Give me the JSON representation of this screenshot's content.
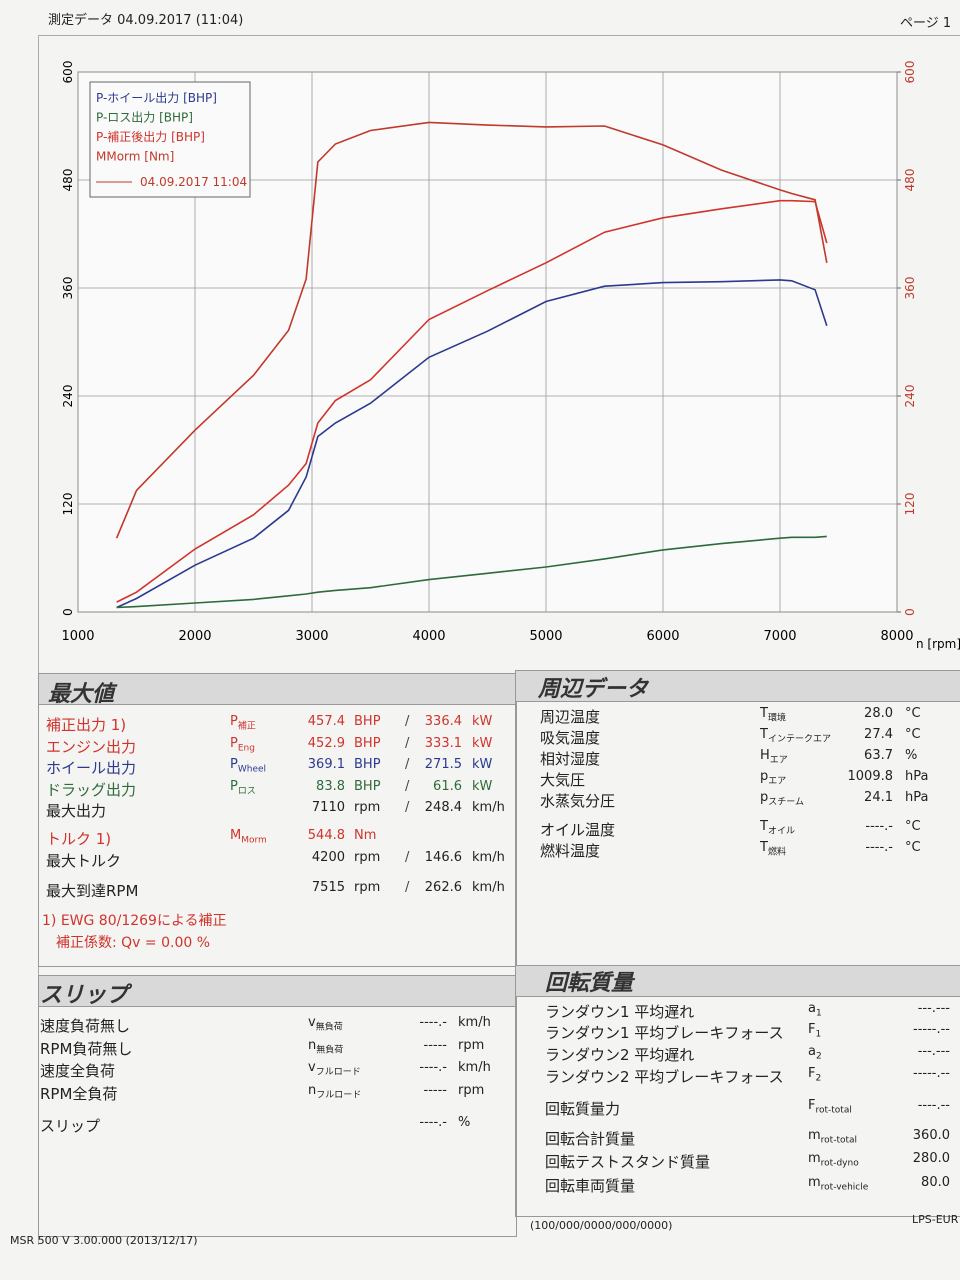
{
  "header": {
    "title": "測定データ 04.09.2017 (11:04)",
    "page": "ページ 1"
  },
  "chart_data": {
    "type": "line",
    "x_label": "n [rpm]",
    "x": [
      1330,
      1500,
      2000,
      2500,
      2800,
      2950,
      3050,
      3200,
      3500,
      4000,
      4500,
      5000,
      5500,
      6000,
      6500,
      7000,
      7100,
      7300,
      7400
    ],
    "xlim": [
      1000,
      8000
    ],
    "xticks": [
      1000,
      2000,
      3000,
      4000,
      5000,
      6000,
      7000,
      8000
    ],
    "ylim": [
      0,
      600
    ],
    "yticks": [
      0,
      120,
      240,
      360,
      480,
      600
    ],
    "y2lim": [
      0,
      600
    ],
    "y2ticks": [
      0,
      120,
      240,
      360,
      480,
      600
    ],
    "grid": true,
    "legend": {
      "position": "upper left",
      "run_label": "04.09.2017 11:04",
      "run_color": "#c0392b"
    },
    "series": [
      {
        "name": "P-ホイール出力 [BHP]",
        "color": "#2b3a8f",
        "values": [
          5,
          15,
          52,
          82,
          113,
          150,
          195,
          210,
          232,
          283,
          312,
          345,
          362,
          366,
          367,
          369,
          368,
          358,
          318
        ]
      },
      {
        "name": "P-ロス出力 [BHP]",
        "color": "#2e6b3a",
        "values": [
          5,
          6,
          10,
          14,
          18,
          20,
          22,
          24,
          27,
          36,
          43,
          50,
          59,
          69,
          76,
          82,
          83,
          83,
          84
        ]
      },
      {
        "name": "P-補正後出力 [BHP]",
        "color": "#d0342c",
        "values": [
          11,
          22,
          70,
          108,
          141,
          165,
          210,
          235,
          258,
          325,
          357,
          388,
          422,
          438,
          448,
          457,
          457,
          456,
          410
        ]
      },
      {
        "name": "MMorm [Nm]",
        "color": "#c0392b",
        "axis": "y2",
        "values": [
          82,
          135,
          202,
          263,
          313,
          370,
          500,
          520,
          535,
          544,
          541,
          539,
          540,
          519,
          491,
          469,
          465,
          458,
          388
        ]
      }
    ]
  },
  "max_values": {
    "title": "最大値",
    "separator": "/",
    "rows": [
      {
        "label": "補正出力 1)",
        "symbol": "P",
        "sub": "補正",
        "value": "457.4",
        "unit": "BHP",
        "value2": "336.4",
        "unit2": "kW",
        "color": "#d0342c"
      },
      {
        "label": "エンジン出力",
        "symbol": "P",
        "sub": "Eng",
        "value": "452.9",
        "unit": "BHP",
        "value2": "333.1",
        "unit2": "kW",
        "color": "#d0342c"
      },
      {
        "label": "ホイール出力",
        "symbol": "P",
        "sub": "Wheel",
        "value": "369.1",
        "unit": "BHP",
        "value2": "271.5",
        "unit2": "kW",
        "color": "#2b3a8f"
      },
      {
        "label": "ドラッグ出力",
        "symbol": "P",
        "sub": "ロス",
        "value": "83.8",
        "unit": "BHP",
        "value2": "61.6",
        "unit2": "kW",
        "color": "#2e6b3a"
      },
      {
        "label": "最大出力",
        "value": "7110",
        "unit": "rpm",
        "value2": "248.4",
        "unit2": "km/h"
      },
      {
        "label": "トルク 1)",
        "symbol": "M",
        "sub": "Morm",
        "value": "544.8",
        "unit": "Nm",
        "color": "#d0342c"
      },
      {
        "label": "最大トルク",
        "value": "4200",
        "unit": "rpm",
        "value2": "146.6",
        "unit2": "km/h"
      },
      {
        "label": "最大到達RPM",
        "value": "7515",
        "unit": "rpm",
        "value2": "262.6",
        "unit2": "km/h"
      }
    ],
    "notes": [
      "1) EWG 80/1269による補正",
      "補正係数: Qv =   0.00 %"
    ]
  },
  "ambient": {
    "title": "周辺データ",
    "rows": [
      {
        "label": "周辺温度",
        "symbol": "T",
        "sub": "環境",
        "value": "28.0",
        "unit": "°C"
      },
      {
        "label": "吸気温度",
        "symbol": "T",
        "sub": "インテークエア",
        "value": "27.4",
        "unit": "°C"
      },
      {
        "label": "相対湿度",
        "symbol": "H",
        "sub": "エア",
        "value": "63.7",
        "unit": "%"
      },
      {
        "label": "大気圧",
        "symbol": "p",
        "sub": "エア",
        "value": "1009.8",
        "unit": "hPa"
      },
      {
        "label": "水蒸気分圧",
        "symbol": "p",
        "sub": "スチーム",
        "value": "24.1",
        "unit": "hPa"
      },
      {
        "label": "オイル温度",
        "symbol": "T",
        "sub": "オイル",
        "value": "----.-",
        "unit": "°C"
      },
      {
        "label": "燃料温度",
        "symbol": "T",
        "sub": "燃料",
        "value": "----.-",
        "unit": "°C"
      }
    ]
  },
  "slip": {
    "title": "スリップ",
    "rows": [
      {
        "label": "速度負荷無し",
        "symbol": "v",
        "sub": "無負荷",
        "value": "----.-",
        "unit": "km/h"
      },
      {
        "label": "RPM負荷無し",
        "symbol": "n",
        "sub": "無負荷",
        "value": "-----",
        "unit": "rpm"
      },
      {
        "label": "速度全負荷",
        "symbol": "v",
        "sub": "フルロード",
        "value": "----.-",
        "unit": "km/h"
      },
      {
        "label": "RPM全負荷",
        "symbol": "n",
        "sub": "フルロード",
        "value": "-----",
        "unit": "rpm"
      },
      {
        "label": "スリップ",
        "value": "----.-",
        "unit": "%"
      }
    ]
  },
  "rotating_mass": {
    "title": "回転質量",
    "rows": [
      {
        "label": "ランダウン1  平均遅れ",
        "symbol": "a",
        "sub": "1",
        "value": "---.---"
      },
      {
        "label": "ランダウン1  平均ブレーキフォース",
        "symbol": "F",
        "sub": "1",
        "value": "-----.--"
      },
      {
        "label": "ランダウン2  平均遅れ",
        "symbol": "a",
        "sub": "2",
        "value": "---.---"
      },
      {
        "label": "ランダウン2  平均ブレーキフォース",
        "symbol": "F",
        "sub": "2",
        "value": "-----.--"
      },
      {
        "label": "回転質量力",
        "symbol": "F",
        "sub": "rot-total",
        "value": "----.--"
      },
      {
        "label": "回転合計質量",
        "symbol": "m",
        "sub": "rot-total",
        "value": "360.0"
      },
      {
        "label": "回転テストスタンド質量",
        "symbol": "m",
        "sub": "rot-dyno",
        "value": "280.0"
      },
      {
        "label": "回転車両質量",
        "symbol": "m",
        "sub": "rot-vehicle",
        "value": "80.0"
      }
    ]
  },
  "footer": {
    "software": "MSR 500 V 3.00.000 (2013/12/17)",
    "code": "(100/000/0000/000/0000)",
    "id": "LPS-EUR"
  }
}
